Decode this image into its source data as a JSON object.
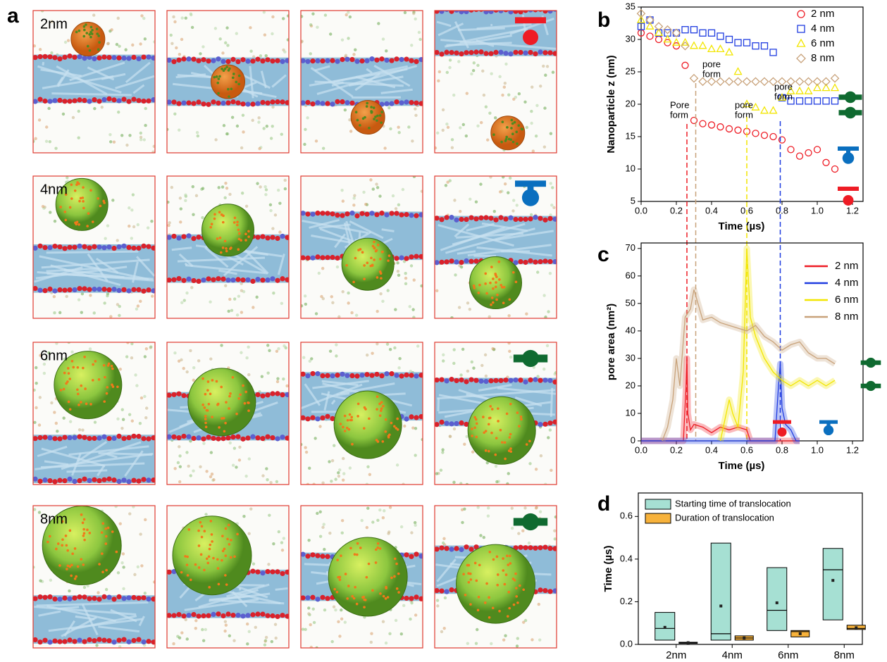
{
  "snapshots": {
    "panel": "a",
    "rows": [
      "2nm",
      "4nm",
      "6nm",
      "8nm"
    ]
  },
  "chart_data": [
    {
      "panel": "b",
      "type": "scatter",
      "xlabel": "Time (µs)",
      "ylabel": "Nanoparticle z  (nm)",
      "xlim": [
        0,
        1.26
      ],
      "ylim": [
        5,
        35
      ],
      "xticks": [
        {
          "value": 0,
          "label": "0.0"
        },
        0.2,
        0.4,
        0.6,
        0.8,
        {
          "value": 1,
          "label": "1.0"
        },
        1.2
      ],
      "yticks": [
        5,
        10,
        15,
        20,
        25,
        30,
        35
      ],
      "x": [
        0,
        0.05,
        0.1,
        0.15,
        0.2,
        0.25,
        0.3,
        0.35,
        0.4,
        0.45,
        0.5,
        0.55,
        0.6,
        0.65,
        0.7,
        0.75,
        0.8,
        0.85,
        0.9,
        0.95,
        1,
        1.05,
        1.1
      ],
      "series": [
        {
          "name": "2 nm",
          "color": "#ee1c25",
          "marker": "circle",
          "values": [
            31,
            30.5,
            30,
            29.5,
            29,
            26,
            17.5,
            17,
            16.8,
            16.5,
            16.2,
            16,
            15.8,
            15.5,
            15.2,
            15,
            14.5,
            13,
            12,
            12.5,
            13,
            11,
            10
          ]
        },
        {
          "name": "4 nm",
          "color": "#1f3ce0",
          "marker": "square",
          "values": [
            32,
            33,
            31,
            31,
            31,
            31.5,
            31.5,
            31,
            31,
            30.5,
            30,
            29.5,
            29.5,
            29,
            29,
            28,
            21,
            20.5,
            20.5,
            20.5,
            20.5,
            20.5,
            20.5
          ]
        },
        {
          "name": "6 nm",
          "color": "#f2e600",
          "marker": "triangle",
          "values": [
            33,
            32,
            31,
            30,
            29.5,
            29.5,
            29,
            29,
            28.5,
            28.5,
            28,
            25,
            20,
            19.5,
            19,
            19,
            21,
            22,
            22,
            22,
            22.5,
            22.5,
            22.5
          ]
        },
        {
          "name": "8 nm",
          "color": "#c8a27a",
          "marker": "diamond",
          "values": [
            34,
            33,
            32,
            31.5,
            31,
            29,
            24,
            23.5,
            23.5,
            23.5,
            23.5,
            23.5,
            23.5,
            23.5,
            23.5,
            23.5,
            23.5,
            23.5,
            23.5,
            23.5,
            23.5,
            23.5,
            24
          ]
        }
      ],
      "annotations": [
        {
          "lines": [
            "Pore",
            "form"
          ],
          "color": "#ee1c25"
        },
        {
          "lines": [
            "pore",
            "form"
          ],
          "color": "#c8a27a"
        },
        {
          "lines": [
            "pore",
            "form"
          ],
          "color": "#e6d800"
        },
        {
          "lines": [
            "pore",
            "form"
          ],
          "color": "#1f3ce0"
        }
      ],
      "vlines": [
        {
          "x": 0.26,
          "color": "#ee1c25"
        },
        {
          "x": 0.31,
          "color": "#c8a27a"
        },
        {
          "x": 0.6,
          "color": "#f2e600"
        },
        {
          "x": 0.79,
          "color": "#1f3ce0"
        }
      ]
    },
    {
      "panel": "c",
      "type": "line",
      "xlabel": "Time (µs)",
      "ylabel": "pore area  (nm²)",
      "xlim": [
        0,
        1.26
      ],
      "ylim": [
        0,
        72
      ],
      "xticks": [
        {
          "value": 0,
          "label": "0.0"
        },
        0.2,
        0.4,
        0.6,
        0.8,
        {
          "value": 1,
          "label": "1.0"
        },
        1.2
      ],
      "yticks": [
        0,
        10,
        20,
        30,
        40,
        50,
        60,
        70
      ],
      "series": [
        {
          "name": "2 nm",
          "color": "#ee1c25",
          "x": [
            0,
            0.24,
            0.255,
            0.26,
            0.265,
            0.28,
            0.3,
            0.35,
            0.4,
            0.45,
            0.5,
            0.55,
            0.6,
            0.62,
            0.9
          ],
          "values": [
            0,
            0,
            20,
            30,
            10,
            4,
            6,
            5,
            3,
            5,
            4,
            5,
            4,
            0,
            0
          ]
        },
        {
          "name": "4 nm",
          "color": "#1f3ce0",
          "x": [
            0,
            0.76,
            0.78,
            0.79,
            0.8,
            0.82,
            0.85,
            0.88,
            0.9
          ],
          "values": [
            0,
            0,
            20,
            28,
            12,
            6,
            4,
            0,
            0
          ]
        },
        {
          "name": "6 nm",
          "color": "#f2e600",
          "x": [
            0.45,
            0.49,
            0.5,
            0.52,
            0.55,
            0.58,
            0.6,
            0.62,
            0.65,
            0.7,
            0.75,
            0.8,
            0.85,
            0.9,
            0.95,
            1,
            1.05,
            1.1
          ],
          "values": [
            0,
            12,
            15,
            10,
            5,
            25,
            70,
            45,
            38,
            30,
            25,
            22,
            20,
            22,
            20,
            22,
            20,
            22
          ]
        },
        {
          "name": "8 nm",
          "color": "#c8a27a",
          "x": [
            0.12,
            0.15,
            0.18,
            0.2,
            0.22,
            0.25,
            0.28,
            0.3,
            0.35,
            0.4,
            0.45,
            0.5,
            0.55,
            0.6,
            0.65,
            0.7,
            0.75,
            0.8,
            0.85,
            0.9,
            0.95,
            1,
            1.05,
            1.1
          ],
          "values": [
            0,
            5,
            15,
            30,
            20,
            45,
            48,
            55,
            44,
            45,
            43,
            42,
            41,
            40,
            42,
            38,
            36,
            33,
            35,
            36,
            32,
            30,
            30,
            28
          ]
        }
      ]
    },
    {
      "panel": "d",
      "type": "box",
      "ylabel": "Time (µs)",
      "categories": [
        "2nm",
        "4nm",
        "6nm",
        "8nm"
      ],
      "ylim": [
        0,
        0.71
      ],
      "yticks": [
        {
          "value": 0,
          "label": "0.0"
        },
        0.2,
        0.4,
        0.6
      ],
      "series": [
        {
          "name": "Starting time of translocation",
          "color": "#a6e0d3",
          "low": [
            0.02,
            0.02,
            0.065,
            0.115
          ],
          "median": [
            0.075,
            0.05,
            0.16,
            0.35
          ],
          "high": [
            0.15,
            0.475,
            0.36,
            0.45
          ],
          "mean": [
            0.08,
            0.18,
            0.195,
            0.3
          ]
        },
        {
          "name": "Duration of translocation",
          "color": "#f7b23b",
          "low": [
            0.005,
            0.02,
            0.035,
            0.07
          ],
          "median": [
            0.008,
            0.03,
            0.06,
            0.075
          ],
          "high": [
            0.01,
            0.04,
            0.065,
            0.09
          ],
          "mean": [
            0.008,
            0.03,
            0.05,
            0.078
          ]
        }
      ]
    }
  ]
}
